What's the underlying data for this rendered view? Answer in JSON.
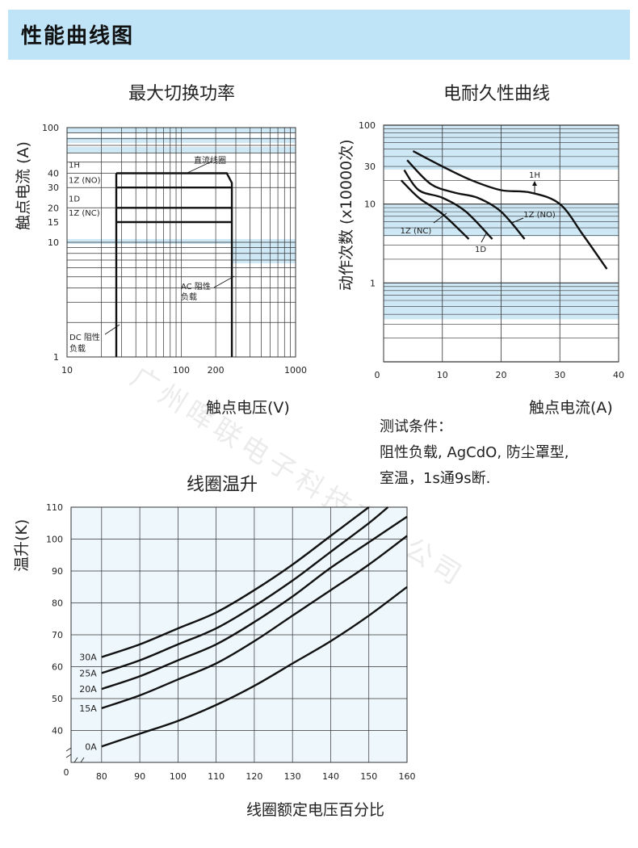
{
  "header": {
    "title": "性能曲线图"
  },
  "watermark": "广州晖联电子科技有限公司",
  "chart_data": [
    {
      "type": "line",
      "title": "最大切换功率",
      "xlabel": "触点电压(V)",
      "ylabel": "触点电流 (A)",
      "xscale": "log",
      "yscale": "log",
      "xlim": [
        10,
        1000
      ],
      "ylim": [
        1,
        100
      ],
      "xticks": [
        "10",
        "100",
        "200",
        "1000"
      ],
      "yticks": [
        "100",
        "40",
        "30",
        "20",
        "15",
        "10",
        "1"
      ],
      "grid": true,
      "series": [
        {
          "name": "1H",
          "x": [
            27,
            250,
            277,
            277
          ],
          "y": [
            40,
            40,
            33,
            1
          ]
        },
        {
          "name": "1Z (NO)",
          "x": [
            27,
            277
          ],
          "y": [
            30,
            30
          ]
        },
        {
          "name": "1D",
          "x": [
            27,
            277
          ],
          "y": [
            20,
            20
          ]
        },
        {
          "name": "1Z (NC)",
          "x": [
            27,
            277
          ],
          "y": [
            15,
            15
          ]
        },
        {
          "name": "DC 阻性负载",
          "x": [
            27,
            27
          ],
          "y": [
            1,
            40
          ]
        }
      ],
      "annotations": [
        "直流线圈",
        "AC 阻性负载",
        "DC 阻性负载"
      ],
      "annotation_lines": {
        "ac_load": "AC 阻性",
        "ac_load2": "负载",
        "dc_load": "DC 阻性",
        "dc_load2": "负载"
      }
    },
    {
      "type": "line",
      "title": "电耐久性曲线",
      "xlabel": "触点电流(A)",
      "ylabel": "动作次数 (x10000次)",
      "xscale": "linear",
      "yscale": "log",
      "xlim": [
        0,
        40
      ],
      "ylim": [
        0.1,
        100
      ],
      "xticks": [
        "0",
        "10",
        "20",
        "30",
        "40"
      ],
      "yticks": [
        "100",
        "30",
        "10",
        "1"
      ],
      "grid": true,
      "series": [
        {
          "name": "1H",
          "x": [
            5,
            10,
            15,
            20,
            25,
            30,
            34,
            38
          ],
          "y": [
            47,
            30,
            20,
            15,
            14,
            10,
            4,
            1.5
          ]
        },
        {
          "name": "1Z (NO)",
          "x": [
            4,
            8,
            12,
            16,
            20,
            24
          ],
          "y": [
            36,
            18,
            14,
            12,
            8,
            3.6
          ]
        },
        {
          "name": "1D",
          "x": [
            3.5,
            6,
            10,
            14,
            18.5
          ],
          "y": [
            27,
            15,
            12,
            8,
            3.6
          ]
        },
        {
          "name": "1Z (NC)",
          "x": [
            3,
            6,
            10,
            14.5
          ],
          "y": [
            20,
            12,
            7.5,
            3.6
          ]
        }
      ]
    },
    {
      "type": "line",
      "title": "线圈温升",
      "xlabel": "线圈额定电压百分比",
      "ylabel": "温升(K)",
      "xlim": [
        80,
        160
      ],
      "ylim": [
        30,
        110
      ],
      "xticks": [
        "80",
        "90",
        "100",
        "110",
        "120",
        "130",
        "140",
        "150",
        "160"
      ],
      "yticks": [
        "110",
        "100",
        "90",
        "80",
        "70",
        "60",
        "50",
        "40"
      ],
      "origin_label": "0",
      "grid": true,
      "series": [
        {
          "name": "0A",
          "x": [
            80,
            90,
            100,
            110,
            120,
            130,
            140,
            150,
            160
          ],
          "y": [
            35,
            39,
            43,
            48,
            54,
            61,
            68,
            76,
            85
          ]
        },
        {
          "name": "15A",
          "x": [
            80,
            90,
            100,
            110,
            120,
            130,
            140,
            150,
            160
          ],
          "y": [
            47,
            51,
            56,
            61,
            68,
            76,
            84,
            92,
            101
          ]
        },
        {
          "name": "20A",
          "x": [
            80,
            90,
            100,
            110,
            120,
            130,
            140,
            150,
            160
          ],
          "y": [
            53,
            57,
            62,
            67,
            74,
            82,
            91,
            99,
            107
          ]
        },
        {
          "name": "25A",
          "x": [
            80,
            90,
            100,
            110,
            120,
            130,
            140,
            150,
            155
          ],
          "y": [
            58,
            62,
            67,
            72,
            79,
            87,
            96,
            105,
            110
          ]
        },
        {
          "name": "30A",
          "x": [
            80,
            90,
            100,
            110,
            120,
            130,
            140,
            150
          ],
          "y": [
            63,
            67,
            72,
            77,
            84,
            92,
            101,
            110
          ]
        }
      ]
    }
  ],
  "test_conditions": {
    "line1": "测试条件：",
    "line2": "阻性负载, AgCdO, 防尘罩型,",
    "line3": "室温，1s通9s断."
  }
}
